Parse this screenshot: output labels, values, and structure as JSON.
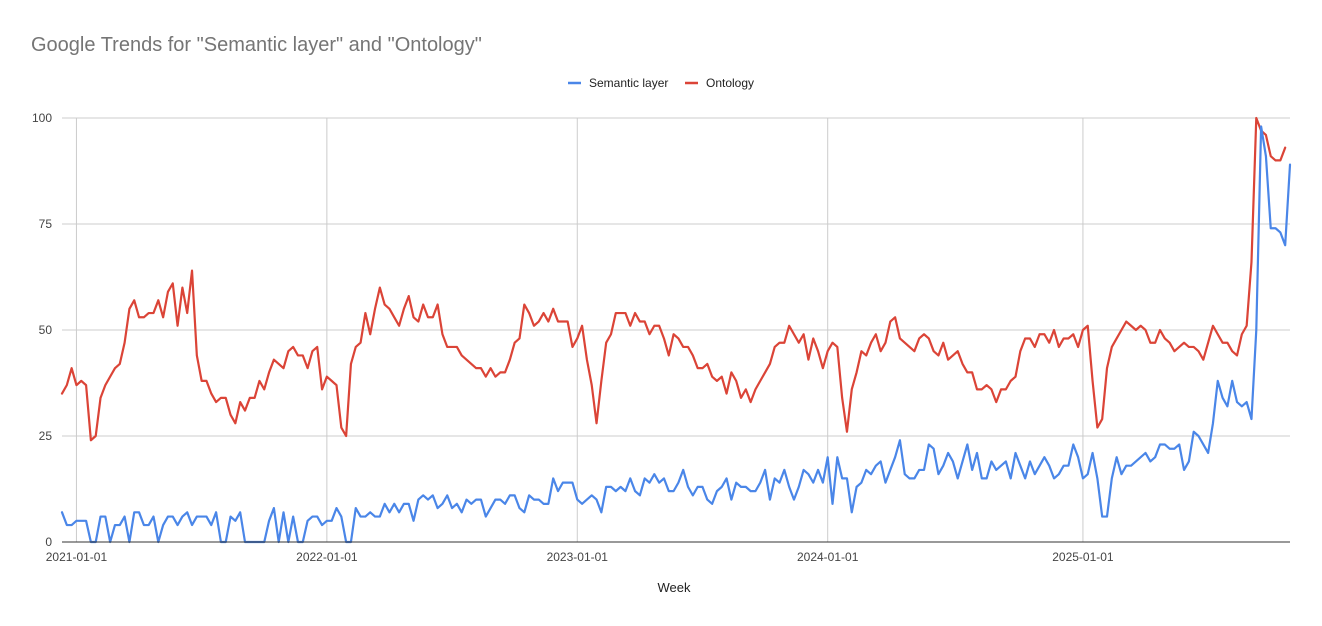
{
  "chart_data": {
    "type": "line",
    "title": "Google Trends for \"Semantic layer\" and \"Ontology\"",
    "xlabel": "Week",
    "ylabel": "",
    "ylim": [
      0,
      100
    ],
    "yticks": [
      0,
      25,
      50,
      75,
      100
    ],
    "ytick_labels": [
      "0",
      "25",
      "50",
      "75",
      "100"
    ],
    "x_axis": {
      "start": "2020-12-13",
      "end": "2025-11-16",
      "unit": "week"
    },
    "xticks": [
      {
        "label": "2021-01-01",
        "week": 3
      },
      {
        "label": "2022-01-01",
        "week": 55
      },
      {
        "label": "2023-01-01",
        "week": 107
      },
      {
        "label": "2024-01-01",
        "week": 159
      },
      {
        "label": "2025-01-01",
        "week": 212
      }
    ],
    "grid": true,
    "legend_position": "top-center",
    "series": [
      {
        "name": "Semantic layer",
        "color": "#4a86e8",
        "values": [
          7,
          4,
          4,
          5,
          5,
          5,
          0,
          0,
          6,
          6,
          0,
          4,
          4,
          6,
          0,
          7,
          7,
          4,
          4,
          6,
          0,
          4,
          6,
          6,
          4,
          6,
          7,
          4,
          6,
          6,
          6,
          4,
          7,
          0,
          0,
          6,
          5,
          7,
          0,
          0,
          0,
          0,
          0,
          5,
          8,
          0,
          7,
          0,
          6,
          0,
          0,
          5,
          6,
          6,
          4,
          5,
          5,
          8,
          6,
          0,
          0,
          8,
          6,
          6,
          7,
          6,
          6,
          9,
          7,
          9,
          7,
          9,
          9,
          5,
          10,
          11,
          10,
          11,
          8,
          9,
          11,
          8,
          9,
          7,
          10,
          9,
          10,
          10,
          6,
          8,
          10,
          10,
          9,
          11,
          11,
          8,
          7,
          11,
          10,
          10,
          9,
          9,
          15,
          12,
          14,
          14,
          14,
          10,
          9,
          10,
          11,
          10,
          7,
          13,
          13,
          12,
          13,
          12,
          15,
          12,
          11,
          15,
          14,
          16,
          14,
          15,
          12,
          12,
          14,
          17,
          13,
          11,
          13,
          13,
          10,
          9,
          12,
          13,
          15,
          10,
          14,
          13,
          13,
          12,
          12,
          14,
          17,
          10,
          15,
          14,
          17,
          13,
          10,
          13,
          17,
          16,
          14,
          17,
          14,
          20,
          9,
          20,
          15,
          15,
          7,
          13,
          14,
          17,
          16,
          18,
          19,
          14,
          17,
          20,
          24,
          16,
          15,
          15,
          17,
          17,
          23,
          22,
          16,
          18,
          21,
          19,
          15,
          19,
          23,
          17,
          21,
          15,
          15,
          19,
          17,
          18,
          19,
          15,
          21,
          18,
          15,
          19,
          16,
          18,
          20,
          18,
          15,
          16,
          18,
          18,
          23,
          20,
          15,
          16,
          21,
          15,
          6,
          6,
          15,
          20,
          16,
          18,
          18,
          19,
          20,
          21,
          19,
          20,
          23,
          23,
          22,
          22,
          23,
          17,
          19,
          26,
          25,
          23,
          21,
          28,
          38,
          34,
          32,
          38,
          33,
          32,
          33,
          29,
          50,
          98,
          91,
          74,
          74,
          73,
          70,
          89
        ]
      },
      {
        "name": "Ontology",
        "color": "#db4437",
        "values": [
          35,
          37,
          41,
          37,
          38,
          37,
          24,
          25,
          34,
          37,
          39,
          41,
          42,
          47,
          55,
          57,
          53,
          53,
          54,
          54,
          57,
          53,
          59,
          61,
          51,
          60,
          54,
          64,
          44,
          38,
          38,
          35,
          33,
          34,
          34,
          30,
          28,
          33,
          31,
          34,
          34,
          38,
          36,
          40,
          43,
          42,
          41,
          45,
          46,
          44,
          44,
          41,
          45,
          46,
          36,
          39,
          38,
          37,
          27,
          25,
          42,
          46,
          47,
          54,
          49,
          55,
          60,
          56,
          55,
          53,
          51,
          55,
          58,
          53,
          52,
          56,
          53,
          53,
          56,
          49,
          46,
          46,
          46,
          44,
          43,
          42,
          41,
          41,
          39,
          41,
          39,
          40,
          40,
          43,
          47,
          48,
          56,
          54,
          51,
          52,
          54,
          52,
          55,
          52,
          52,
          52,
          46,
          48,
          51,
          43,
          37,
          28,
          38,
          47,
          49,
          54,
          54,
          54,
          51,
          54,
          52,
          52,
          49,
          51,
          51,
          48,
          44,
          49,
          48,
          46,
          46,
          44,
          41,
          41,
          42,
          39,
          38,
          39,
          35,
          40,
          38,
          34,
          36,
          33,
          36,
          38,
          40,
          42,
          46,
          47,
          47,
          51,
          49,
          47,
          49,
          43,
          48,
          45,
          41,
          45,
          47,
          46,
          34,
          26,
          36,
          40,
          45,
          44,
          47,
          49,
          45,
          47,
          52,
          53,
          48,
          47,
          46,
          45,
          48,
          49,
          48,
          45,
          44,
          47,
          43,
          44,
          45,
          42,
          40,
          40,
          36,
          36,
          37,
          36,
          33,
          36,
          36,
          38,
          39,
          45,
          48,
          48,
          46,
          49,
          49,
          47,
          50,
          46,
          48,
          48,
          49,
          46,
          50,
          51,
          38,
          27,
          29,
          41,
          46,
          48,
          50,
          52,
          51,
          50,
          51,
          50,
          47,
          47,
          50,
          48,
          47,
          45,
          46,
          47,
          46,
          46,
          45,
          43,
          47,
          51,
          49,
          47,
          47,
          45,
          44,
          49,
          51,
          66,
          100,
          97,
          96,
          91,
          90,
          90,
          93
        ]
      }
    ]
  }
}
